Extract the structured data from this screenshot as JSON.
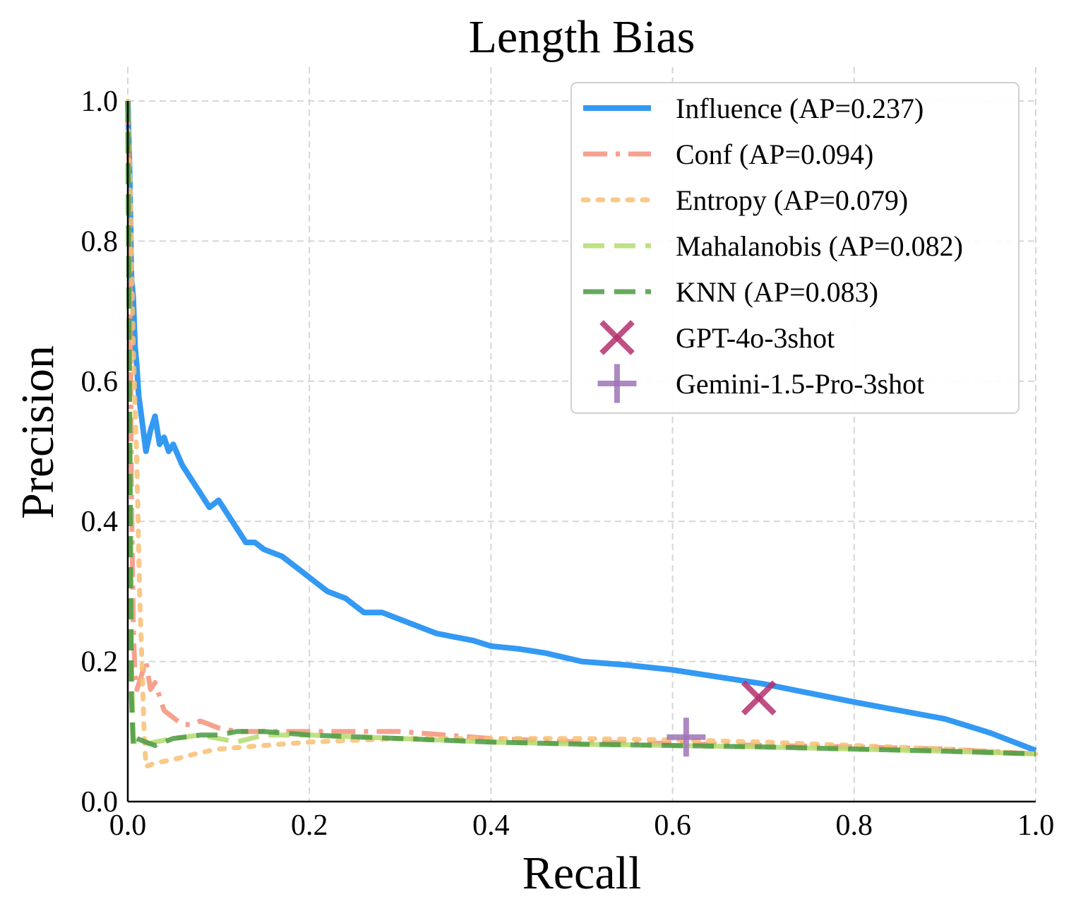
{
  "chart_data": {
    "type": "line",
    "title": "Length Bias",
    "xlabel": "Recall",
    "ylabel": "Precision",
    "xlim": [
      0.0,
      1.0
    ],
    "ylim": [
      0.0,
      1.0
    ],
    "x_ticks": [
      "0.0",
      "0.2",
      "0.4",
      "0.6",
      "0.8",
      "1.0"
    ],
    "y_ticks": [
      "0.0",
      "0.2",
      "0.4",
      "0.6",
      "0.8",
      "1.0"
    ],
    "grid": true,
    "legend_position": "upper right",
    "series": [
      {
        "name": "Influence (AP=0.237)",
        "style": "solid",
        "color": "#3399f3",
        "x": [
          0.0,
          0.002,
          0.004,
          0.006,
          0.008,
          0.01,
          0.012,
          0.015,
          0.02,
          0.025,
          0.03,
          0.035,
          0.04,
          0.045,
          0.05,
          0.06,
          0.07,
          0.08,
          0.09,
          0.1,
          0.11,
          0.12,
          0.13,
          0.14,
          0.15,
          0.17,
          0.19,
          0.2,
          0.22,
          0.24,
          0.26,
          0.28,
          0.3,
          0.32,
          0.34,
          0.36,
          0.38,
          0.4,
          0.43,
          0.46,
          0.5,
          0.55,
          0.6,
          0.65,
          0.7,
          0.75,
          0.8,
          0.85,
          0.9,
          0.95,
          1.0
        ],
        "y": [
          1.0,
          0.9,
          0.75,
          0.72,
          0.65,
          0.62,
          0.58,
          0.55,
          0.5,
          0.53,
          0.55,
          0.51,
          0.52,
          0.5,
          0.51,
          0.48,
          0.46,
          0.44,
          0.42,
          0.43,
          0.41,
          0.39,
          0.37,
          0.37,
          0.36,
          0.35,
          0.33,
          0.32,
          0.3,
          0.29,
          0.27,
          0.27,
          0.26,
          0.25,
          0.24,
          0.235,
          0.23,
          0.222,
          0.218,
          0.212,
          0.2,
          0.195,
          0.188,
          0.178,
          0.168,
          0.155,
          0.142,
          0.13,
          0.118,
          0.098,
          0.073
        ]
      },
      {
        "name": "Conf (AP=0.094)",
        "style": "dashdot",
        "color": "#f4907a",
        "x": [
          0.0,
          0.002,
          0.004,
          0.006,
          0.008,
          0.01,
          0.015,
          0.02,
          0.025,
          0.03,
          0.035,
          0.04,
          0.05,
          0.06,
          0.07,
          0.08,
          0.1,
          0.12,
          0.15,
          0.2,
          0.25,
          0.3,
          0.4,
          0.5,
          0.6,
          0.7,
          0.8,
          0.9,
          1.0
        ],
        "y": [
          1.0,
          0.85,
          0.45,
          0.25,
          0.18,
          0.16,
          0.18,
          0.2,
          0.16,
          0.17,
          0.15,
          0.13,
          0.12,
          0.11,
          0.11,
          0.115,
          0.105,
          0.1,
          0.1,
          0.1,
          0.1,
          0.1,
          0.09,
          0.085,
          0.083,
          0.08,
          0.078,
          0.075,
          0.068
        ]
      },
      {
        "name": "Entropy (AP=0.079)",
        "style": "dotted",
        "color": "#f8c074",
        "x": [
          0.0,
          0.003,
          0.006,
          0.01,
          0.013,
          0.016,
          0.018,
          0.02,
          0.03,
          0.05,
          0.08,
          0.1,
          0.15,
          0.2,
          0.3,
          0.4,
          0.5,
          0.6,
          0.7,
          0.8,
          0.9,
          1.0
        ],
        "y": [
          1.0,
          0.85,
          0.65,
          0.48,
          0.3,
          0.18,
          0.1,
          0.05,
          0.055,
          0.06,
          0.07,
          0.075,
          0.08,
          0.085,
          0.09,
          0.09,
          0.09,
          0.088,
          0.085,
          0.08,
          0.075,
          0.068
        ]
      },
      {
        "name": "Mahalanobis (AP=0.082)",
        "style": "dashed",
        "color": "#b5db6e",
        "x": [
          0.0,
          0.002,
          0.004,
          0.006,
          0.01,
          0.02,
          0.03,
          0.05,
          0.08,
          0.1,
          0.12,
          0.15,
          0.2,
          0.3,
          0.4,
          0.5,
          0.6,
          0.7,
          0.8,
          0.9,
          1.0
        ],
        "y": [
          1.0,
          0.6,
          0.2,
          0.09,
          0.085,
          0.082,
          0.085,
          0.09,
          0.095,
          0.09,
          0.085,
          0.095,
          0.095,
          0.09,
          0.085,
          0.082,
          0.08,
          0.078,
          0.075,
          0.072,
          0.068
        ]
      },
      {
        "name": "KNN (AP=0.083)",
        "style": "dashed",
        "color": "#4a9a42",
        "x": [
          0.0,
          0.002,
          0.004,
          0.006,
          0.01,
          0.02,
          0.03,
          0.05,
          0.08,
          0.1,
          0.12,
          0.15,
          0.2,
          0.3,
          0.4,
          0.5,
          0.6,
          0.7,
          0.8,
          0.9,
          1.0
        ],
        "y": [
          1.0,
          0.55,
          0.15,
          0.08,
          0.09,
          0.085,
          0.08,
          0.09,
          0.095,
          0.095,
          0.1,
          0.1,
          0.095,
          0.09,
          0.085,
          0.082,
          0.08,
          0.078,
          0.075,
          0.072,
          0.068
        ]
      }
    ],
    "points": [
      {
        "name": "GPT-4o-3shot",
        "marker": "x",
        "color": "#b5306e",
        "x": 0.695,
        "y": 0.148
      },
      {
        "name": "Gemini-1.5-Pro-3shot",
        "marker": "+",
        "color": "#9f74b8",
        "x": 0.615,
        "y": 0.092
      }
    ]
  }
}
